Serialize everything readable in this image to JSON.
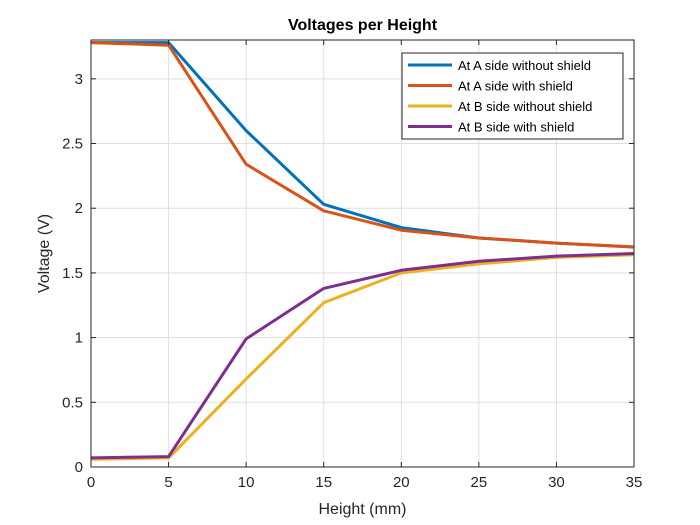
{
  "chart_data": {
    "type": "line",
    "title": "Voltages per Height",
    "xlabel": "Height (mm)",
    "ylabel": "Voltage (V)",
    "xlim": [
      0,
      35
    ],
    "ylim": [
      0,
      3.3
    ],
    "xticks": [
      0,
      5,
      10,
      15,
      20,
      25,
      30,
      35
    ],
    "yticks": [
      0,
      0.5,
      1,
      1.5,
      2,
      2.5,
      3
    ],
    "xtick_labels": [
      "0",
      "5",
      "10",
      "15",
      "20",
      "25",
      "30",
      "35"
    ],
    "ytick_labels": [
      "0",
      "0.5",
      "1",
      "1.5",
      "2",
      "2.5",
      "3"
    ],
    "grid": true,
    "legend_position": "top-right",
    "x": [
      0,
      5,
      10,
      15,
      20,
      25,
      30,
      35
    ],
    "series": [
      {
        "name": "At A side without shield",
        "color": "#0072BD",
        "values": [
          3.28,
          3.28,
          2.6,
          2.03,
          1.85,
          1.77,
          1.73,
          1.7
        ]
      },
      {
        "name": "At A side with shield",
        "color": "#D95319",
        "values": [
          3.28,
          3.26,
          2.34,
          1.98,
          1.83,
          1.77,
          1.73,
          1.7
        ]
      },
      {
        "name": "At B side without shield",
        "color": "#EDB120",
        "values": [
          0.06,
          0.07,
          0.68,
          1.27,
          1.5,
          1.57,
          1.62,
          1.64
        ]
      },
      {
        "name": "At B side with shield",
        "color": "#7E2F8E",
        "values": [
          0.07,
          0.08,
          0.99,
          1.38,
          1.52,
          1.59,
          1.63,
          1.65
        ]
      }
    ]
  }
}
